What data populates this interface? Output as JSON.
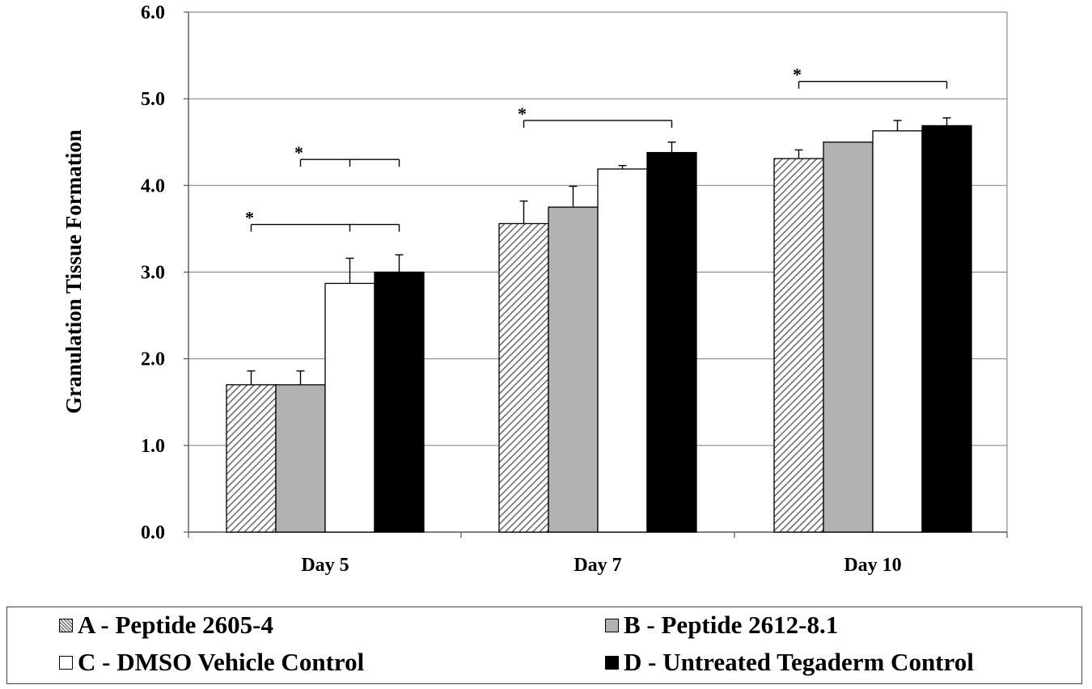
{
  "chart_data": {
    "type": "bar",
    "title": "",
    "xlabel": "",
    "ylabel": "Granulation Tissue Formation",
    "ylim": [
      0,
      6
    ],
    "yticks": [
      "0.0",
      "1.0",
      "2.0",
      "3.0",
      "4.0",
      "5.0",
      "6.0"
    ],
    "grid": true,
    "legend_position": "bottom",
    "categories": [
      "Day 5",
      "Day 7",
      "Day 10"
    ],
    "series": [
      {
        "name": "A - Peptide 2605-4",
        "fill": "hatch",
        "color": "#6e6e6e",
        "values": [
          1.7,
          3.56,
          4.31
        ],
        "errors": [
          0.16,
          0.26,
          0.1
        ]
      },
      {
        "name": "B - Peptide 2612-8.1",
        "fill": "solid",
        "color": "#b2b2b2",
        "values": [
          1.7,
          3.75,
          4.5
        ],
        "errors": [
          0.16,
          0.24,
          0.0
        ]
      },
      {
        "name": "C - DMSO Vehicle Control",
        "fill": "solid",
        "color": "#ffffff",
        "values": [
          2.87,
          4.19,
          4.63
        ],
        "errors": [
          0.29,
          0.04,
          0.12
        ]
      },
      {
        "name": "D - Untreated Tegaderm Control",
        "fill": "solid",
        "color": "#000000",
        "values": [
          3.0,
          4.38,
          4.69
        ],
        "errors": [
          0.2,
          0.12,
          0.09
        ]
      }
    ],
    "significance": [
      {
        "category": 0,
        "from_series": 0,
        "to_series": 3,
        "drops": [
          0,
          2,
          3
        ],
        "level": 3.55,
        "label": "*"
      },
      {
        "category": 0,
        "from_series": 1,
        "to_series": 3,
        "drops": [
          1,
          2,
          3
        ],
        "level": 4.3,
        "label": "*"
      },
      {
        "category": 1,
        "from_series": 0,
        "to_series": 3,
        "drops": [
          0,
          3
        ],
        "level": 4.75,
        "label": "*"
      },
      {
        "category": 2,
        "from_series": 0,
        "to_series": 3,
        "drops": [
          0,
          3
        ],
        "level": 5.2,
        "label": "*"
      }
    ]
  },
  "legend": {
    "a": "A - Peptide 2605-4",
    "b": "B - Peptide 2612-8.1",
    "c": "C - DMSO Vehicle Control",
    "d": "D - Untreated Tegaderm Control"
  }
}
